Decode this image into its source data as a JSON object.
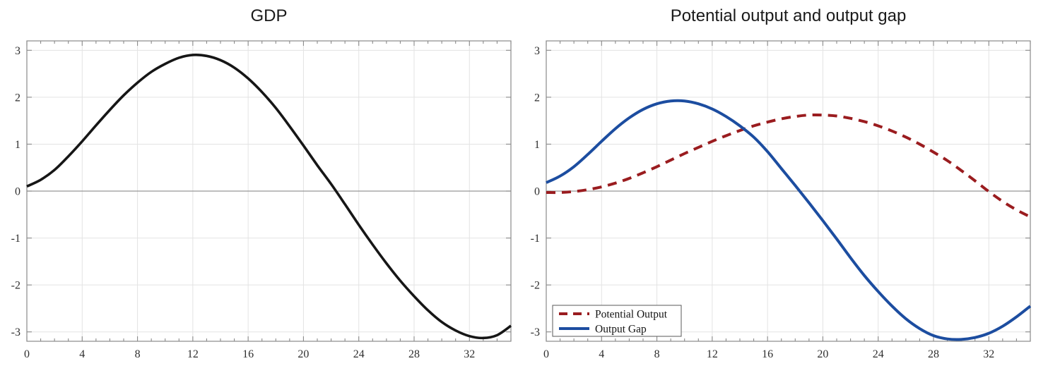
{
  "style_colors": {
    "background": "#ffffff",
    "axis_box": "#8a8a8a",
    "grid_line": "#e3e3e3",
    "zero_line": "#969696",
    "tick_label": "#2e2e2e",
    "title": "#1a1a1a",
    "legend_border": "#5a5a5a",
    "legend_background": "#ffffff"
  },
  "chart_data": [
    {
      "id": "gdp",
      "type": "line",
      "title": "GDP",
      "xlabel": "",
      "ylabel": "",
      "xlim": [
        0,
        35
      ],
      "ylim": [
        -3.2,
        3.2
      ],
      "xticks": [
        0,
        4,
        8,
        12,
        16,
        20,
        24,
        28,
        32
      ],
      "yticks": [
        -3,
        -2,
        -1,
        0,
        1,
        2,
        3
      ],
      "x_minor_step": 1,
      "grid": "on",
      "zero_line": "on",
      "legend": null,
      "x": [
        0,
        1,
        2,
        3,
        4,
        5,
        6,
        7,
        8,
        9,
        10,
        11,
        12,
        13,
        14,
        15,
        16,
        17,
        18,
        19,
        20,
        21,
        22,
        23,
        24,
        25,
        26,
        27,
        28,
        29,
        30,
        31,
        32,
        33,
        34,
        35
      ],
      "series": [
        {
          "name": "GDP",
          "color": "#161616",
          "style": "solid",
          "width": 3.6,
          "values": [
            0.1,
            0.24,
            0.45,
            0.74,
            1.06,
            1.4,
            1.73,
            2.04,
            2.31,
            2.54,
            2.71,
            2.84,
            2.9,
            2.88,
            2.79,
            2.63,
            2.4,
            2.11,
            1.77,
            1.38,
            0.97,
            0.55,
            0.15,
            -0.28,
            -0.72,
            -1.14,
            -1.54,
            -1.91,
            -2.24,
            -2.54,
            -2.79,
            -2.97,
            -3.09,
            -3.13,
            -3.07,
            -2.87
          ]
        }
      ]
    },
    {
      "id": "potential-output-and-output-gap",
      "type": "line",
      "title": "Potential output and output gap",
      "xlabel": "",
      "ylabel": "",
      "xlim": [
        0,
        35
      ],
      "ylim": [
        -3.2,
        3.2
      ],
      "xticks": [
        0,
        4,
        8,
        12,
        16,
        20,
        24,
        28,
        32
      ],
      "yticks": [
        -3,
        -2,
        -1,
        0,
        1,
        2,
        3
      ],
      "x_minor_step": 1,
      "grid": "on",
      "zero_line": "on",
      "legend": {
        "location": "southwest",
        "entries": [
          "Potential Output",
          "Output Gap"
        ]
      },
      "x": [
        0,
        1,
        2,
        3,
        4,
        5,
        6,
        7,
        8,
        9,
        10,
        11,
        12,
        13,
        14,
        15,
        16,
        17,
        18,
        19,
        20,
        21,
        22,
        23,
        24,
        25,
        26,
        27,
        28,
        29,
        30,
        31,
        32,
        33,
        34,
        35
      ],
      "series": [
        {
          "name": "Potential Output",
          "color": "#9a1c1f",
          "style": "dashed",
          "width": 4,
          "values": [
            -0.03,
            -0.03,
            -0.01,
            0.03,
            0.09,
            0.17,
            0.27,
            0.39,
            0.52,
            0.66,
            0.8,
            0.93,
            1.06,
            1.18,
            1.29,
            1.39,
            1.47,
            1.54,
            1.59,
            1.62,
            1.62,
            1.6,
            1.55,
            1.48,
            1.39,
            1.28,
            1.15,
            1.0,
            0.83,
            0.65,
            0.44,
            0.22,
            -0.01,
            -0.22,
            -0.4,
            -0.55
          ]
        },
        {
          "name": "Output Gap",
          "color": "#1c4da0",
          "style": "solid",
          "width": 4,
          "values": [
            0.18,
            0.32,
            0.52,
            0.78,
            1.06,
            1.33,
            1.56,
            1.74,
            1.86,
            1.92,
            1.92,
            1.86,
            1.75,
            1.59,
            1.39,
            1.15,
            0.84,
            0.48,
            0.12,
            -0.25,
            -0.63,
            -1.02,
            -1.42,
            -1.8,
            -2.14,
            -2.45,
            -2.72,
            -2.93,
            -3.08,
            -3.15,
            -3.16,
            -3.12,
            -3.03,
            -2.88,
            -2.68,
            -2.45
          ]
        }
      ]
    }
  ]
}
